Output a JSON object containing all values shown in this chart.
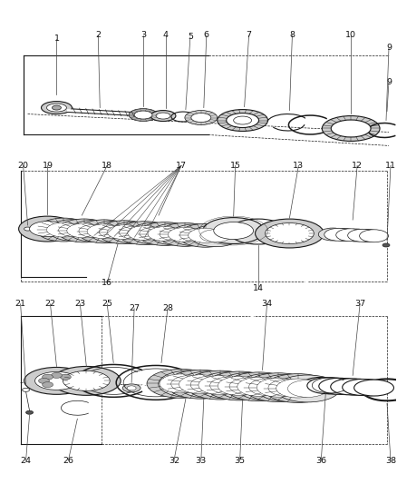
{
  "bg_color": "#ffffff",
  "lc": "#1a1a1a",
  "gray1": "#aaaaaa",
  "gray2": "#cccccc",
  "gray3": "#e0e0e0",
  "darkgray": "#555555",
  "fig_w": 4.38,
  "fig_h": 5.33,
  "dpi": 100
}
